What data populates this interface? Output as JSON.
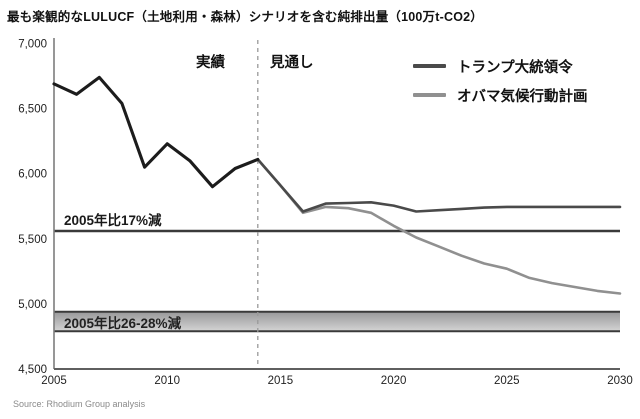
{
  "header": {
    "title": "最も楽観的なLULUCF（土地利用・森林）シナリオを含む純排出量（100万t-CO2）"
  },
  "legend": {
    "items": [
      {
        "label": "トランプ大統領令",
        "color": "#4a4a4a"
      },
      {
        "label": "オバマ気候行動計画",
        "color": "#909090"
      }
    ]
  },
  "source": "Source: Rhodium Group analysis",
  "chart_data": {
    "type": "line",
    "title": "最も楽観的なLULUCF（土地利用・森林）シナリオを含む純排出量（100万t-CO2）",
    "xlabel": "",
    "ylabel": "100万t-CO2",
    "xlim": [
      2005,
      2030
    ],
    "ylim": [
      4500,
      7000
    ],
    "grid": false,
    "legend_position": "top-right",
    "x_ticks": [
      {
        "v": 2005,
        "label": "2005"
      },
      {
        "v": 2010,
        "label": "2010"
      },
      {
        "v": 2015,
        "label": "2015"
      },
      {
        "v": 2020,
        "label": "2020"
      },
      {
        "v": 2025,
        "label": "2025"
      },
      {
        "v": 2030,
        "label": "2030"
      }
    ],
    "y_ticks": [
      {
        "v": 7000,
        "label": "7,000"
      },
      {
        "v": 6500,
        "label": "6,500"
      },
      {
        "v": 6000,
        "label": "6,000"
      },
      {
        "v": 5500,
        "label": "5,500"
      },
      {
        "v": 5000,
        "label": "5,000"
      },
      {
        "v": 4500,
        "label": "4,500"
      }
    ],
    "series": [
      {
        "name": "オバマ気候行動計画",
        "color": "#909090",
        "width": 2.6,
        "x": [
          2014,
          2015,
          2016,
          2017,
          2018,
          2019,
          2020,
          2021,
          2022,
          2023,
          2024,
          2025,
          2026,
          2027,
          2028,
          2029,
          2030
        ],
        "values": [
          6110,
          5910,
          5700,
          5745,
          5735,
          5700,
          5600,
          5510,
          5440,
          5370,
          5310,
          5270,
          5200,
          5160,
          5130,
          5100,
          5080
        ]
      },
      {
        "name": "トランプ大統領令",
        "color": "#4a4a4a",
        "width": 2.6,
        "x": [
          2014,
          2015,
          2016,
          2017,
          2018,
          2019,
          2020,
          2021,
          2022,
          2023,
          2024,
          2025,
          2026,
          2027,
          2028,
          2029,
          2030
        ],
        "values": [
          6110,
          5910,
          5710,
          5770,
          5775,
          5780,
          5755,
          5710,
          5720,
          5730,
          5740,
          5745,
          5745,
          5745,
          5745,
          5745,
          5745
        ]
      },
      {
        "name": "実績（純排出量）",
        "color": "#1c1c1c",
        "width": 3.1,
        "x": [
          2005,
          2006,
          2007,
          2008,
          2009,
          2010,
          2011,
          2012,
          2013,
          2014
        ],
        "values": [
          6690,
          6610,
          6740,
          6540,
          6050,
          6230,
          6100,
          5900,
          6040,
          6110
        ]
      }
    ],
    "reference_line": {
      "label": "2005年比17%減",
      "value": 5560,
      "color": "#3a3a3a"
    },
    "reference_band": {
      "label": "2005年比26-28%減",
      "from": 4790,
      "to": 4940,
      "border_color": "#3a3a3a",
      "fill_top": "#98989a",
      "fill_bottom": "#d4d4d4"
    },
    "divider": {
      "x": 2014,
      "left_label": "実績",
      "right_label": "見通し",
      "color": "#999999"
    }
  }
}
